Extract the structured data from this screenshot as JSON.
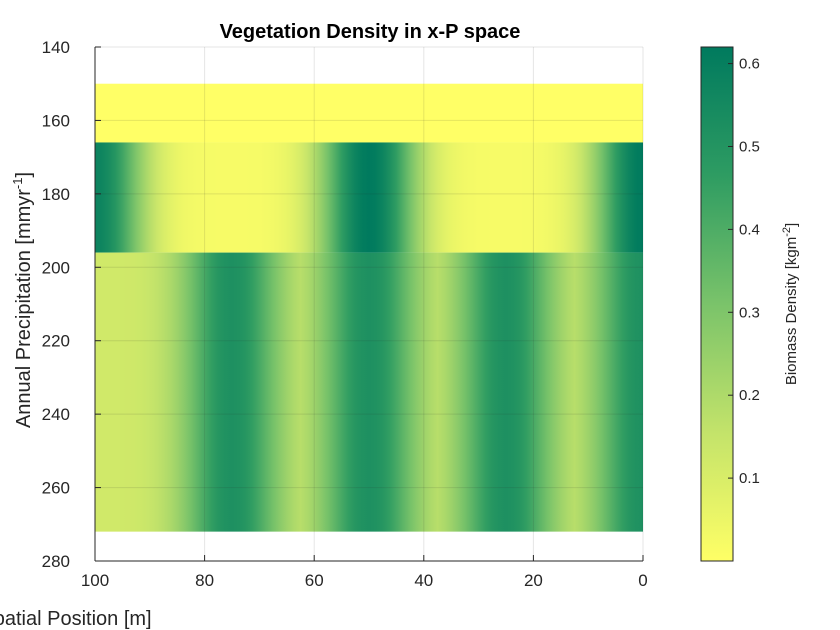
{
  "chart_data": {
    "type": "heatmap",
    "title": "Vegetation Density in x-P space",
    "xlabel": "Spatial Position [m]",
    "ylabel": "Annual Precipitation [mmyr",
    "ylabel_sup": "-1",
    "ylabel_suffix": "]",
    "xlim": [
      100,
      0
    ],
    "x_reversed": true,
    "ylim": [
      140,
      280
    ],
    "y_reversed": true,
    "x_ticks": [
      100,
      80,
      60,
      40,
      20,
      0
    ],
    "y_ticks": [
      140,
      160,
      180,
      200,
      220,
      240,
      260,
      280
    ],
    "grid": true,
    "colormap": [
      "#ffff66",
      "#c3e36a",
      "#7ac36a",
      "#2e9c62",
      "#007a5e"
    ],
    "colorbar": {
      "label": "Biomass Density [kgm",
      "label_sup": "-2",
      "label_suffix": "]",
      "range": [
        0.0,
        0.62
      ],
      "ticks": [
        0.1,
        0.2,
        0.3,
        0.4,
        0.5,
        0.6
      ],
      "tick_labels": [
        "0.1",
        "0.2",
        "0.3",
        "0.4",
        "0.5",
        "0.6"
      ]
    },
    "bands": [
      {
        "p_range": [
          150,
          166
        ],
        "baseline": 0.0,
        "peaks": []
      },
      {
        "p_range": [
          166,
          196
        ],
        "baseline": 0.02,
        "peaks": [
          {
            "x": 100,
            "value": 0.58
          },
          {
            "x": 50,
            "value": 0.62
          },
          {
            "x": 0,
            "value": 0.62
          }
        ]
      },
      {
        "p_range": [
          196,
          272
        ],
        "baseline": 0.12,
        "peaks": [
          {
            "x": 75,
            "value": 0.52
          },
          {
            "x": 50,
            "value": 0.52
          },
          {
            "x": 25,
            "value": 0.52
          },
          {
            "x": 0,
            "value": 0.52
          }
        ]
      }
    ]
  }
}
